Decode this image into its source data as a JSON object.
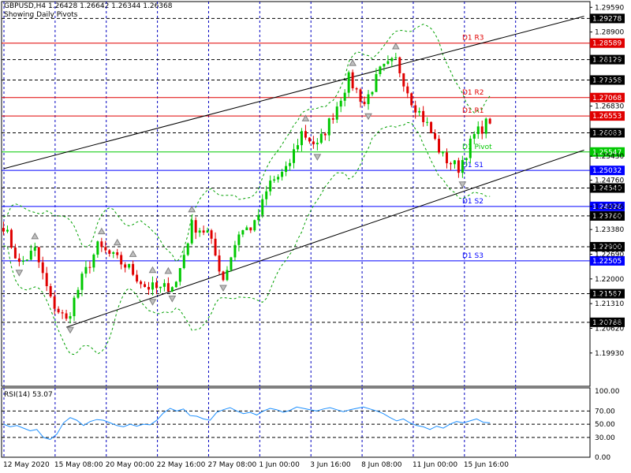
{
  "header": {
    "symbol_line": "GBPUSD,H4  1.26428 1.26642 1.26344 1.26368",
    "pivot_note": "Showing Daily Pivots"
  },
  "rsi_label": "RSI(14) 53.07",
  "colors": {
    "bull": "#00c800",
    "bear": "#e00000",
    "grid": "#0000c0",
    "resistance": "#e00000",
    "pivot": "#00c800",
    "support": "#0000ff",
    "rsi_line": "#1e90ff",
    "bands": "#00a000"
  },
  "chart_data": [
    {
      "type": "candlestick",
      "title": "GBPUSD,H4",
      "ylim": [
        1.19,
        1.2975
      ],
      "y_ticks": [
        "1.29590",
        "1.28900",
        "1.28129",
        "1.27558",
        "1.26830",
        "1.26083",
        "1.25430",
        "1.24760",
        "1.24540",
        "1.24026",
        "1.23760",
        "1.23380",
        "1.22900",
        "1.22690",
        "1.22000",
        "1.21587",
        "1.21310",
        "1.20788",
        "1.20620",
        "1.19930"
      ],
      "x_labels": [
        "12 May 2020",
        "15 May 08:00",
        "20 May 00:00",
        "22 May 16:00",
        "27 May 08:00",
        "1 Jun 00:00",
        "3 Jun 16:00",
        "8 Jun 08:00",
        "11 Jun 00:00",
        "15 Jun 16:00"
      ],
      "levels": [
        {
          "name": "D1 R3",
          "value": 1.28589,
          "label": "1.28589",
          "role": "resistance"
        },
        {
          "name": "D1 R2",
          "value": 1.27068,
          "label": "1.27068",
          "role": "resistance"
        },
        {
          "name": "D1 R1",
          "value": 1.26553,
          "label": "1.26553",
          "role": "resistance"
        },
        {
          "name": "D1 Pivot",
          "value": 1.25547,
          "label": "1.25547",
          "role": "pivot"
        },
        {
          "name": "D1 S1",
          "value": 1.25032,
          "label": "1.25032",
          "role": "support"
        },
        {
          "name": "D1 S2",
          "value": 1.24026,
          "label": "1.24026",
          "role": "support"
        },
        {
          "name": "D1 S3",
          "value": 1.22505,
          "label": "1.22505",
          "role": "support"
        }
      ],
      "dashed_levels": [
        {
          "value": 1.29278,
          "label": "1.29278"
        },
        {
          "value": 1.28129,
          "label": "1.28129"
        },
        {
          "value": 1.27558,
          "label": "1.27558"
        },
        {
          "value": 1.26083,
          "label": "1.26083"
        },
        {
          "value": 1.2454,
          "label": "1.24540"
        },
        {
          "value": 1.2376,
          "label": "1.23760"
        },
        {
          "value": 1.229,
          "label": "1.22900"
        },
        {
          "value": 1.21587,
          "label": "1.21587"
        },
        {
          "value": 1.20788,
          "label": "1.20788"
        }
      ],
      "channel": {
        "upper": [
          [
            0,
            1.2508
          ],
          [
            148,
            1.2934
          ]
        ],
        "lower": [
          [
            16,
            1.2065
          ],
          [
            148,
            1.256
          ]
        ]
      },
      "close_path": [
        [
          0,
          1.235
        ],
        [
          4,
          1.224
        ],
        [
          8,
          1.228
        ],
        [
          12,
          1.214
        ],
        [
          16,
          1.2082
        ],
        [
          20,
          1.22
        ],
        [
          24,
          1.229
        ],
        [
          28,
          1.226
        ],
        [
          32,
          1.223
        ],
        [
          36,
          1.218
        ],
        [
          40,
          1.217
        ],
        [
          44,
          1.219
        ],
        [
          48,
          1.235
        ],
        [
          52,
          1.233
        ],
        [
          56,
          1.22
        ],
        [
          60,
          1.233
        ],
        [
          64,
          1.235
        ],
        [
          68,
          1.247
        ],
        [
          72,
          1.25
        ],
        [
          76,
          1.261
        ],
        [
          80,
          1.257
        ],
        [
          84,
          1.266
        ],
        [
          88,
          1.276
        ],
        [
          92,
          1.269
        ],
        [
          96,
          1.278
        ],
        [
          100,
          1.281
        ],
        [
          104,
          1.27
        ],
        [
          108,
          1.263
        ],
        [
          112,
          1.254
        ],
        [
          116,
          1.251
        ],
        [
          120,
          1.26
        ],
        [
          124,
          1.2645
        ]
      ]
    },
    {
      "type": "line",
      "title": "RSI(14) 53.07",
      "ylim": [
        0,
        105
      ],
      "y_ticks": [
        "100.00",
        "70.00",
        "50.00",
        "30.00",
        "0.00"
      ],
      "values": [
        50,
        46,
        48,
        44,
        40,
        42,
        30,
        27,
        35,
        52,
        60,
        56,
        48,
        54,
        57,
        56,
        52,
        48,
        46,
        50,
        47,
        50,
        49,
        56,
        67,
        74,
        70,
        73,
        63,
        62,
        58,
        56,
        68,
        72,
        75,
        70,
        66,
        68,
        64,
        70,
        74,
        72,
        68,
        71,
        76,
        74,
        72,
        70,
        73,
        75,
        72,
        69,
        72,
        74,
        76,
        73,
        70,
        66,
        60,
        55,
        58,
        52,
        48,
        46,
        42,
        47,
        44,
        50,
        54,
        52,
        55,
        58,
        53,
        52
      ]
    }
  ]
}
